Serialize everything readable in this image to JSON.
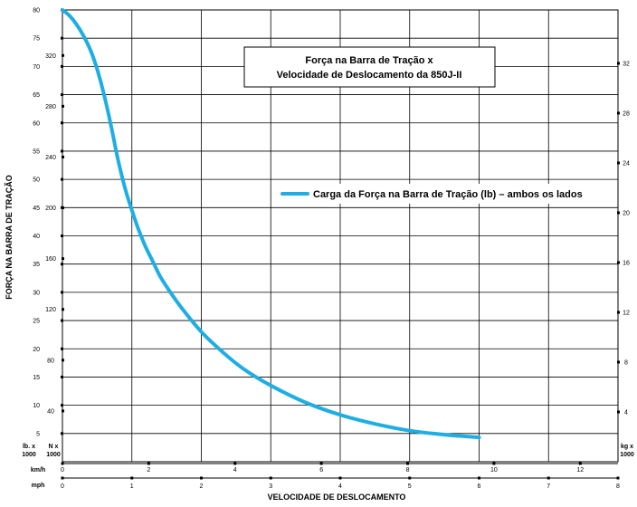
{
  "chart_data": {
    "type": "line",
    "title_lines": [
      "Força na Barra de Tração x",
      "Velocidade de Deslocamento da 850J-II"
    ],
    "ylabel": "FORÇA NA BARRA DE TRAÇÃO",
    "xlabel": "VELOCIDADE DE DESLOCAMENTO",
    "units": {
      "lb": "lb. x 1000",
      "n": "N x 1000",
      "kg": "kg x 1000",
      "kmh": "km/h",
      "mph": "mph"
    },
    "y_lb_ticks": [
      5,
      10,
      15,
      20,
      25,
      30,
      35,
      40,
      45,
      50,
      55,
      60,
      65,
      70,
      75,
      80
    ],
    "y_n_ticks": [
      40,
      80,
      120,
      160,
      200,
      240,
      280,
      320
    ],
    "y_kg_ticks": [
      4,
      8,
      12,
      16,
      20,
      24,
      28,
      32
    ],
    "x_kmh_ticks": [
      0,
      2,
      4,
      6,
      8,
      10,
      12
    ],
    "x_mph_ticks": [
      0,
      1,
      2,
      3,
      4,
      5,
      6,
      7,
      8
    ],
    "xlim_mph": [
      0,
      8
    ],
    "ylim_lb": [
      0,
      80
    ],
    "grid": true,
    "series": [
      {
        "name": "Carga da Força na Barra de Tração (lb) – ambos os lados",
        "color": "#1eaee4",
        "x_mph": [
          0,
          0.1,
          0.2,
          0.3,
          0.4,
          0.5,
          0.6,
          0.7,
          0.8,
          0.9,
          1.0,
          1.1,
          1.2,
          1.3,
          1.4,
          1.5,
          1.7,
          2.0,
          2.3,
          2.6,
          3.0,
          3.5,
          4.0,
          4.5,
          5.0,
          5.5,
          6.0
        ],
        "y_lb": [
          80,
          79,
          77.5,
          75.5,
          73,
          69.5,
          65,
          59.5,
          53.5,
          48.5,
          44.5,
          41,
          38,
          35.5,
          33,
          31,
          27.5,
          23,
          19.5,
          16.5,
          13.5,
          10.5,
          8.3,
          6.7,
          5.5,
          4.8,
          4.3
        ]
      }
    ]
  }
}
